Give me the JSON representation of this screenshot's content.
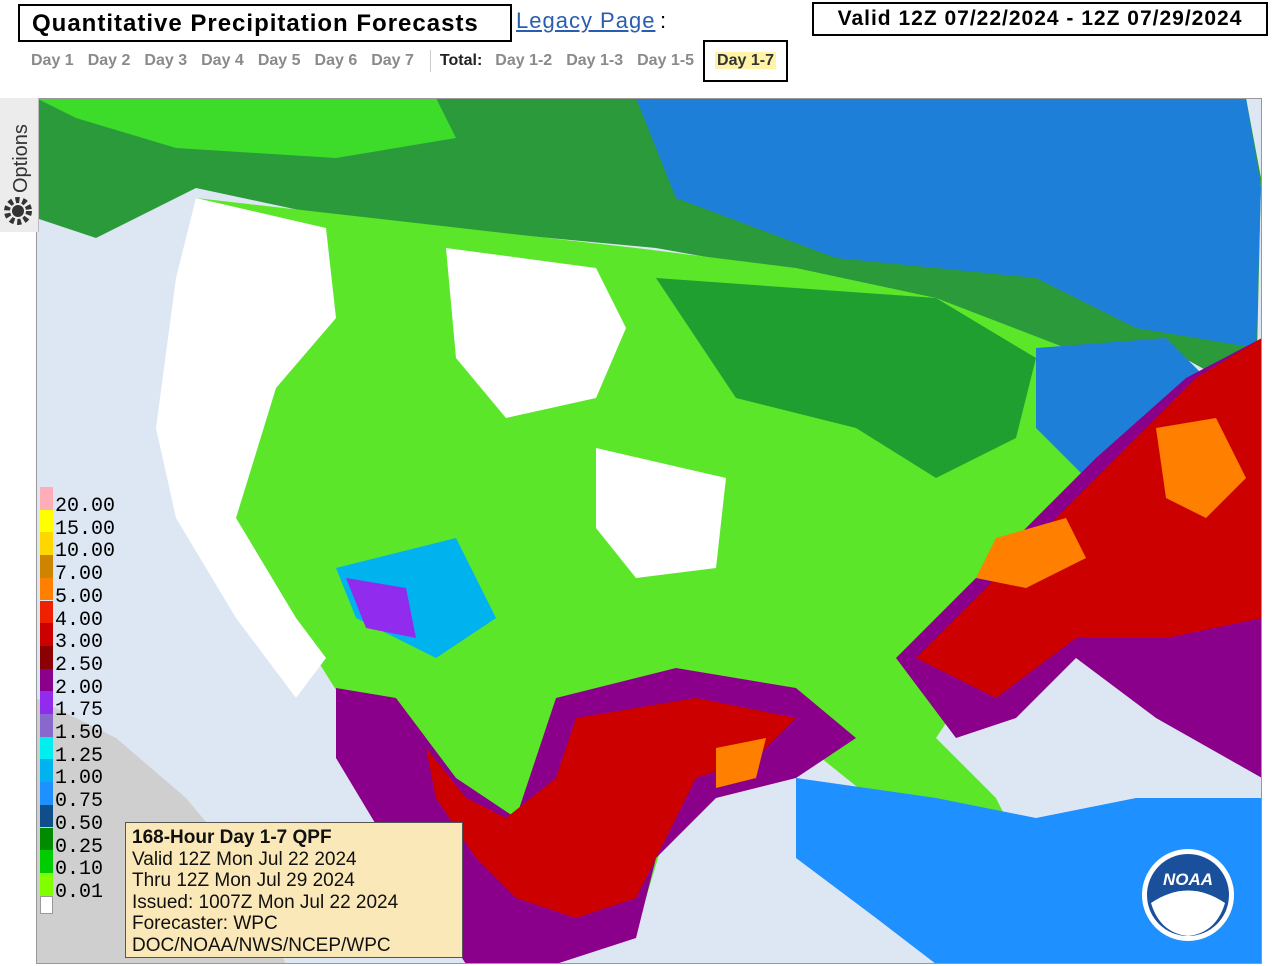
{
  "header": {
    "title": "Quantitative Precipitation Forecasts",
    "legacy_link": "Legacy Page",
    "colon": ":",
    "valid": "Valid 12Z 07/22/2024 - 12Z 07/29/2024"
  },
  "tabs": {
    "days": [
      "Day 1",
      "Day 2",
      "Day 3",
      "Day 4",
      "Day 5",
      "Day 6",
      "Day 7"
    ],
    "total_label": "Total:",
    "totals": [
      "Day 1-2",
      "Day 1-3",
      "Day 1-5",
      "Day 1-7"
    ],
    "selected": "Day 1-7"
  },
  "options": "Options",
  "legend": [
    {
      "label": "20.00",
      "color": "#ffaeb9"
    },
    {
      "label": "15.00",
      "color": "#ffff00"
    },
    {
      "label": "10.00",
      "color": "#ffd700"
    },
    {
      "label": "7.00",
      "color": "#cd8500"
    },
    {
      "label": "5.00",
      "color": "#ff7f00"
    },
    {
      "label": "4.00",
      "color": "#ee2200"
    },
    {
      "label": "3.00",
      "color": "#cd0000"
    },
    {
      "label": "2.50",
      "color": "#8b0000"
    },
    {
      "label": "2.00",
      "color": "#8b008b"
    },
    {
      "label": "1.75",
      "color": "#912cee"
    },
    {
      "label": "1.50",
      "color": "#8968cd"
    },
    {
      "label": "1.25",
      "color": "#00eeee"
    },
    {
      "label": "1.00",
      "color": "#00b2ee"
    },
    {
      "label": "0.75",
      "color": "#1e90ff"
    },
    {
      "label": "0.50",
      "color": "#104e8b"
    },
    {
      "label": "0.25",
      "color": "#008b00"
    },
    {
      "label": "0.10",
      "color": "#00cd00"
    },
    {
      "label": "0.01",
      "color": "#7fff00"
    }
  ],
  "info_box": [
    "168-Hour Day 1-7 QPF",
    "Valid 12Z Mon Jul 22 2024",
    "Thru 12Z Mon Jul 29 2024",
    "Issued: 1007Z Mon Jul 22 2024",
    "Forecaster: WPC",
    "DOC/NOAA/NWS/NCEP/WPC"
  ],
  "logo": "NOAA"
}
